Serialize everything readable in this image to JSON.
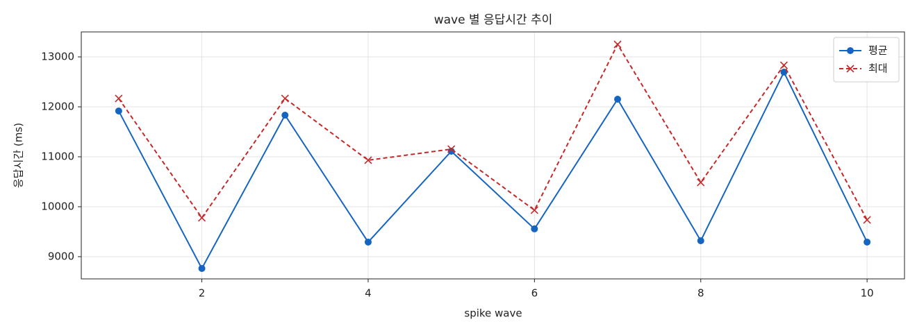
{
  "chart_data": {
    "type": "line",
    "title": "wave 별 응답시간 추이",
    "x_label": "spike wave",
    "y_label": "응답시간 (ms)",
    "x": [
      1,
      2,
      3,
      4,
      5,
      6,
      7,
      8,
      9,
      10
    ],
    "series": [
      {
        "name": "평균",
        "color": "#1565c0",
        "marker": "circle",
        "dash": "solid",
        "values": [
          11917,
          8764,
          11833,
          9292,
          11111,
          9556,
          12153,
          9319,
          12694,
          9292
        ]
      },
      {
        "name": "최대",
        "color": "#c62828",
        "marker": "x",
        "dash": "dashed",
        "values": [
          12167,
          9778,
          12167,
          10931,
          11153,
          9931,
          13250,
          10486,
          12833,
          9736
        ]
      }
    ],
    "xlim": [
      0.55,
      10.45
    ],
    "xticks": [
      2,
      4,
      6,
      8,
      10
    ],
    "ylim": [
      8555,
      13500
    ],
    "yticks": [
      9000,
      10000,
      11000,
      12000,
      13000
    ],
    "grid": true,
    "legend": "upper right"
  }
}
